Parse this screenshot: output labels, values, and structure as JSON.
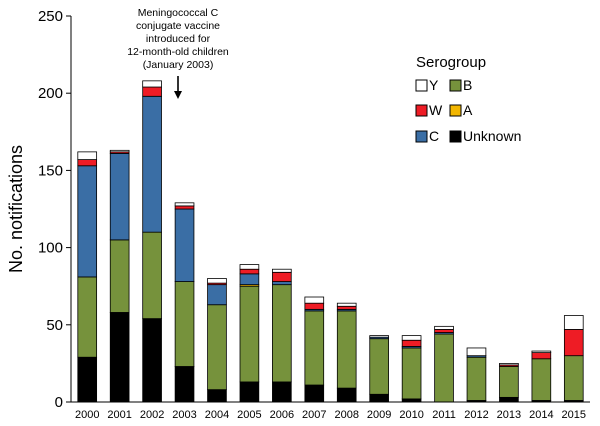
{
  "chart_data": {
    "type": "bar",
    "stacked": true,
    "ylabel": "No. notifications",
    "xlabel": "",
    "ylim": [
      0,
      250
    ],
    "yticks": [
      0,
      50,
      100,
      150,
      200,
      250
    ],
    "categories": [
      "2000",
      "2001",
      "2002",
      "2003",
      "2004",
      "2005",
      "2006",
      "2007",
      "2008",
      "2009",
      "2010",
      "2011",
      "2012",
      "2013",
      "2014",
      "2015"
    ],
    "series": [
      {
        "name": "Unknown",
        "color": "#000000",
        "values": [
          29,
          58,
          54,
          23,
          8,
          13,
          13,
          11,
          9,
          5,
          2,
          0,
          1,
          3,
          1,
          1
        ]
      },
      {
        "name": "B",
        "color": "#76923c",
        "values": [
          52,
          47,
          56,
          55,
          55,
          62,
          63,
          48,
          50,
          36,
          33,
          44,
          28,
          20,
          27,
          29
        ]
      },
      {
        "name": "A",
        "color": "#f2b600",
        "values": [
          0,
          0,
          0,
          0,
          0,
          1,
          0,
          0,
          0,
          0,
          0,
          0,
          0,
          0,
          0,
          0
        ]
      },
      {
        "name": "C",
        "color": "#3a6ea5",
        "values": [
          72,
          56,
          88,
          47,
          13,
          7,
          2,
          1,
          1,
          1,
          1,
          1,
          1,
          0,
          0,
          0
        ]
      },
      {
        "name": "W",
        "color": "#ee1c25",
        "values": [
          4,
          1,
          6,
          2,
          1,
          3,
          6,
          4,
          2,
          0,
          4,
          2,
          0,
          1,
          4,
          17
        ]
      },
      {
        "name": "Y",
        "color": "#ffffff",
        "values": [
          5,
          1,
          4,
          2,
          3,
          3,
          2,
          4,
          2,
          1,
          3,
          2,
          5,
          1,
          1,
          9
        ]
      }
    ],
    "legend": {
      "title": "Serogroup",
      "placement": "top-right",
      "items": [
        "Y",
        "B",
        "W",
        "A",
        "C",
        "Unknown"
      ]
    },
    "annotation": {
      "lines": [
        "Meningococcal C",
        "conjugate vaccine",
        "introduced for",
        "12-month-old children",
        "(January 2003)"
      ],
      "arrow_at": 2003
    }
  }
}
